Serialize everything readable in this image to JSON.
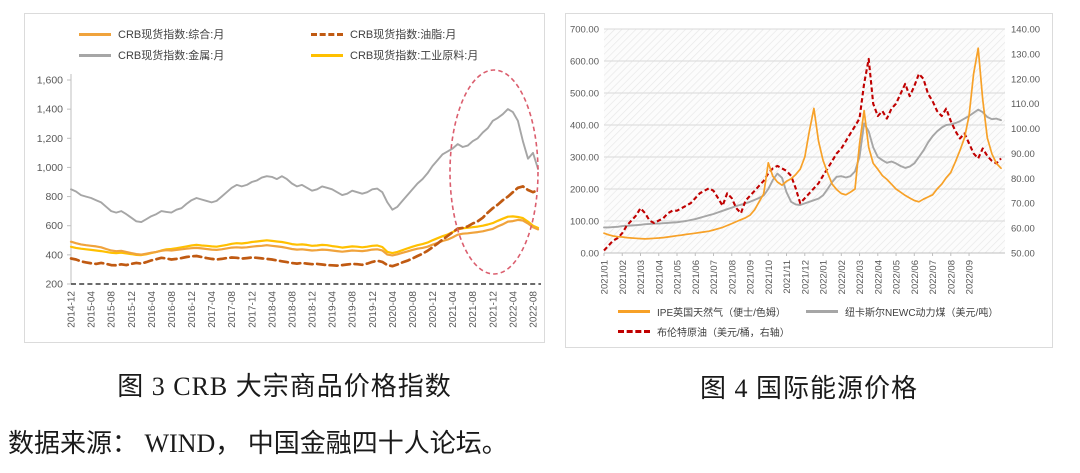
{
  "captions": {
    "left": "图 3 CRB 大宗商品价格指数",
    "right": "图 4  国际能源价格",
    "source": "数据来源： WIND， 中国金融四十人论坛。"
  },
  "colors": {
    "composite_orange": "#F0A33C",
    "oils_dark_orange": "#C05A12",
    "metal_gray": "#A6A6A6",
    "industrial_yellow": "#FFC000",
    "gas_orange": "#F7A128",
    "coal_gray": "#A6A6A6",
    "brent_red": "#C00000",
    "highlight_ellipse": "#DB5E6E",
    "axis_text": "#595959",
    "grid_line": "#D9D9D9"
  },
  "chart_data": [
    {
      "type": "line",
      "title": "图 3 CRB 大宗商品价格指数",
      "xlabel": "",
      "ylabel": "",
      "ylim": [
        200,
        1600
      ],
      "yticks": [
        200,
        400,
        600,
        800,
        1000,
        1200,
        1400,
        1600
      ],
      "ytick_labels": [
        "200",
        "400",
        "600",
        "800",
        "1,000",
        "1,200",
        "1,400",
        "1,600"
      ],
      "grid": false,
      "legend_position": "top",
      "x_monthly_range": [
        "2014-12",
        "2022-09"
      ],
      "x_tick_labels": [
        "2014-12",
        "2015-04",
        "2015-08",
        "2015-12",
        "2016-04",
        "2016-08",
        "2016-12",
        "2017-04",
        "2017-08",
        "2017-12",
        "2018-04",
        "2018-08",
        "2018-12",
        "2019-04",
        "2019-08",
        "2019-12",
        "2020-04",
        "2020-08",
        "2020-12",
        "2021-04",
        "2021-08",
        "2021-12",
        "2022-04",
        "2022-08"
      ],
      "annotation": {
        "shape": "dashed-ellipse",
        "meaning": "highlight of 2021-2022 price surge and pullback",
        "color": "#DB5E6E"
      },
      "series": [
        {
          "name": "CRB现货指数:综合:月",
          "color": "#F0A33C",
          "dash": "solid",
          "values": [
            490,
            480,
            472,
            466,
            462,
            458,
            452,
            440,
            430,
            425,
            428,
            420,
            412,
            405,
            402,
            408,
            415,
            420,
            428,
            432,
            430,
            434,
            438,
            442,
            446,
            448,
            444,
            440,
            436,
            434,
            438,
            444,
            450,
            452,
            450,
            452,
            456,
            460,
            462,
            466,
            462,
            458,
            454,
            448,
            440,
            436,
            438,
            434,
            430,
            432,
            436,
            434,
            430,
            426,
            422,
            426,
            430,
            428,
            426,
            430,
            436,
            438,
            430,
            402,
            396,
            404,
            414,
            424,
            434,
            442,
            448,
            456,
            470,
            482,
            495,
            505,
            520,
            538,
            545,
            548,
            552,
            556,
            562,
            570,
            578,
            595,
            610,
            628,
            632,
            640,
            636,
            615,
            590,
            575
          ]
        },
        {
          "name": "CRB现货指数:油脂:月",
          "color": "#C05A12",
          "dash": "dashed",
          "values": [
            375,
            368,
            355,
            348,
            342,
            338,
            345,
            338,
            330,
            328,
            335,
            330,
            338,
            345,
            340,
            350,
            362,
            370,
            380,
            375,
            368,
            372,
            378,
            385,
            390,
            392,
            385,
            378,
            372,
            368,
            372,
            378,
            382,
            380,
            374,
            378,
            382,
            380,
            376,
            372,
            368,
            362,
            356,
            350,
            344,
            340,
            344,
            340,
            336,
            338,
            334,
            330,
            328,
            326,
            330,
            334,
            338,
            336,
            332,
            340,
            352,
            360,
            352,
            330,
            322,
            334,
            348,
            360,
            375,
            392,
            408,
            428,
            452,
            478,
            505,
            530,
            555,
            580,
            585,
            595,
            615,
            630,
            655,
            690,
            720,
            745,
            775,
            800,
            830,
            860,
            870,
            845,
            830,
            845
          ]
        },
        {
          "name": "CRB现货指数:金属:月",
          "color": "#A6A6A6",
          "dash": "solid",
          "values": [
            850,
            835,
            810,
            800,
            790,
            775,
            760,
            730,
            700,
            690,
            700,
            680,
            655,
            630,
            625,
            645,
            665,
            680,
            700,
            695,
            690,
            710,
            720,
            750,
            775,
            790,
            780,
            770,
            760,
            770,
            800,
            830,
            860,
            880,
            870,
            880,
            900,
            910,
            930,
            940,
            935,
            920,
            940,
            920,
            890,
            870,
            880,
            860,
            840,
            850,
            870,
            860,
            850,
            830,
            810,
            820,
            840,
            830,
            820,
            830,
            850,
            855,
            830,
            760,
            710,
            730,
            770,
            810,
            850,
            890,
            920,
            960,
            1010,
            1050,
            1090,
            1110,
            1130,
            1160,
            1140,
            1150,
            1180,
            1200,
            1240,
            1270,
            1320,
            1340,
            1365,
            1400,
            1380,
            1320,
            1180,
            1060,
            1100,
            990
          ]
        },
        {
          "name": "CRB现货指数:工业原料:月",
          "color": "#FFC000",
          "dash": "solid",
          "values": [
            455,
            448,
            442,
            438,
            434,
            430,
            426,
            420,
            414,
            412,
            415,
            410,
            405,
            400,
            398,
            404,
            412,
            420,
            430,
            438,
            440,
            446,
            452,
            458,
            464,
            468,
            464,
            462,
            458,
            456,
            462,
            468,
            476,
            480,
            478,
            482,
            488,
            492,
            496,
            500,
            496,
            492,
            488,
            482,
            474,
            470,
            472,
            468,
            462,
            464,
            468,
            466,
            460,
            456,
            450,
            454,
            458,
            456,
            452,
            456,
            462,
            464,
            454,
            420,
            412,
            420,
            432,
            444,
            456,
            466,
            474,
            484,
            500,
            514,
            528,
            540,
            556,
            574,
            582,
            586,
            590,
            594,
            600,
            608,
            618,
            634,
            648,
            662,
            664,
            660,
            652,
            628,
            600,
            585
          ]
        }
      ]
    },
    {
      "type": "line",
      "title": "图 4  国际能源价格",
      "xlabel": "",
      "ylabel_left": "",
      "ylabel_right": "",
      "ylim_left": [
        0,
        700
      ],
      "ylim_right": [
        50,
        140
      ],
      "yticks_left": [
        0,
        100,
        200,
        300,
        400,
        500,
        600,
        700
      ],
      "ytick_labels_left": [
        "0.00",
        "100.00",
        "200.00",
        "300.00",
        "400.00",
        "500.00",
        "600.00",
        "700.00"
      ],
      "yticks_right": [
        50,
        60,
        70,
        80,
        90,
        100,
        110,
        120,
        130,
        140
      ],
      "ytick_labels_right": [
        "50.00",
        "60.00",
        "70.00",
        "80.00",
        "90.00",
        "100.00",
        "110.00",
        "120.00",
        "130.00",
        "140.00"
      ],
      "grid": true,
      "plot_background": "diagonal-hatch",
      "legend_position": "bottom",
      "x_tick_labels": [
        "2021/01",
        "2021/02",
        "2021/03",
        "2021/04",
        "2021/05",
        "2021/06",
        "2021/07",
        "2021/08",
        "2021/09",
        "2021/10",
        "2021/11",
        "2021/12",
        "2022/01",
        "2022/02",
        "2022/03",
        "2022/04",
        "2022/05",
        "2022/06",
        "2022/07",
        "2022/08",
        "2022/09"
      ],
      "series": [
        {
          "name": "IPE英国天然气（便士/色姆）",
          "color": "#F7A128",
          "dash": "solid",
          "axis": "left",
          "values": [
            62,
            57,
            53,
            51,
            50,
            48,
            47,
            46,
            45,
            44,
            45,
            46,
            47,
            48,
            50,
            52,
            54,
            56,
            58,
            60,
            62,
            64,
            66,
            68,
            72,
            76,
            80,
            86,
            92,
            98,
            104,
            110,
            118,
            135,
            160,
            185,
            282,
            240,
            222,
            212,
            224,
            232,
            245,
            262,
            300,
            380,
            452,
            350,
            290,
            250,
            215,
            198,
            186,
            182,
            190,
            200,
            340,
            445,
            330,
            280,
            262,
            242,
            230,
            215,
            200,
            190,
            180,
            172,
            164,
            160,
            168,
            175,
            182,
            200,
            215,
            235,
            252,
            285,
            320,
            360,
            430,
            560,
            640,
            480,
            360,
            310,
            280,
            265
          ]
        },
        {
          "name": "纽卡斯尔NEWC动力煤（美元/吨）",
          "color": "#A6A6A6",
          "dash": "solid",
          "axis": "left",
          "values": [
            80,
            80,
            81,
            82,
            84,
            85,
            86,
            87,
            88,
            90,
            91,
            92,
            92,
            93,
            94,
            95,
            96,
            98,
            100,
            103,
            106,
            110,
            114,
            118,
            122,
            127,
            132,
            137,
            142,
            147,
            151,
            155,
            160,
            166,
            172,
            180,
            200,
            228,
            248,
            235,
            190,
            160,
            152,
            150,
            155,
            160,
            165,
            170,
            180,
            200,
            222,
            238,
            240,
            236,
            240,
            255,
            300,
            405,
            380,
            330,
            300,
            290,
            282,
            286,
            280,
            272,
            266,
            270,
            280,
            300,
            320,
            345,
            365,
            380,
            392,
            400,
            402,
            406,
            412,
            420,
            428,
            438,
            448,
            440,
            425,
            418,
            420,
            415
          ]
        },
        {
          "name": "布伦特原油（美元/桶，右轴）",
          "color": "#C00000",
          "dash": "dashed",
          "axis": "right",
          "values": [
            51,
            53,
            55,
            56,
            58,
            61,
            63,
            65,
            68,
            66,
            63,
            62,
            63,
            64,
            66,
            67,
            67,
            68,
            69,
            70,
            72,
            74,
            75,
            76,
            75,
            72,
            69,
            74,
            72,
            68,
            66,
            71,
            73,
            75,
            77,
            79,
            82,
            84,
            85,
            84,
            83,
            81,
            76,
            70,
            72,
            74,
            76,
            78,
            81,
            84,
            87,
            90,
            92,
            95,
            98,
            101,
            104,
            118,
            128,
            110,
            105,
            107,
            104,
            108,
            110,
            114,
            118,
            113,
            117,
            122,
            120,
            114,
            111,
            107,
            105,
            108,
            103,
            99,
            96,
            98,
            94,
            90,
            88,
            92,
            89,
            87,
            86,
            88
          ]
        }
      ]
    }
  ]
}
